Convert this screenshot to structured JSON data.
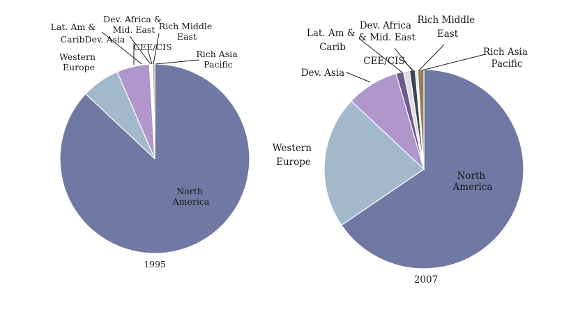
{
  "chart_data": [
    {
      "type": "pie",
      "caption": "1995",
      "start": "12 o'clock, clockwise",
      "slices": [
        {
          "label": "North America",
          "value": 87.0,
          "color": "#7079a3"
        },
        {
          "label": "Western Europe",
          "value": 6.5,
          "color": "#a2b8cb"
        },
        {
          "label": "Dev. Asia",
          "value": 5.6,
          "color": "#b096cb"
        },
        {
          "label": "Lat. Am & Carib",
          "value": 0.15,
          "color": "#6f5b8e"
        },
        {
          "label": "CEE/CIS",
          "value": 0.15,
          "color": "#b7bdc4"
        },
        {
          "label": "Dev. Africa & Mid. East",
          "value": 0.15,
          "color": "#3e4252"
        },
        {
          "label": "Rich Middle East",
          "value": 0.15,
          "color": "#e3e6ea"
        },
        {
          "label": "Rich Asia Pacific",
          "value": 0.3,
          "color": "#948054"
        }
      ]
    },
    {
      "type": "pie",
      "caption": "2007",
      "start": "12 o'clock, clockwise",
      "slices": [
        {
          "label": "North America",
          "value": 65.5,
          "color": "#7079a3"
        },
        {
          "label": "Western Europe",
          "value": 21.5,
          "color": "#a2b8cb"
        },
        {
          "label": "Dev. Asia",
          "value": 8.5,
          "color": "#b096cb"
        },
        {
          "label": "Lat. Am & Carib",
          "value": 1.2,
          "color": "#6f5b8e"
        },
        {
          "label": "CEE/CIS",
          "value": 1.0,
          "color": "#dadde2"
        },
        {
          "label": "Dev. Africa & Mid. East",
          "value": 0.9,
          "color": "#3e4252"
        },
        {
          "label": "Rich Middle East",
          "value": 0.4,
          "color": "#e3e6ea"
        },
        {
          "label": "Rich Asia Pacific",
          "value": 1.0,
          "color": "#948054"
        }
      ]
    }
  ],
  "labels": {
    "c1": {
      "north_america": [
        "North",
        "America"
      ],
      "western_europe": [
        "Western",
        "Europe"
      ],
      "dev_asia": "CaribDev. Asia",
      "lat_am": "Lat. Am &",
      "dev_africa": [
        "Dev. Africa &",
        "Mid. East"
      ],
      "cee_cis": "CEE/CIS",
      "rich_middle_east": [
        "Rich Middle",
        "East"
      ],
      "rich_asia_pacific": [
        "Rich Asia",
        "Pacific"
      ]
    },
    "c2": {
      "north_america": [
        "North",
        "America"
      ],
      "western_europe": [
        "Western",
        "Europe"
      ],
      "dev_asia": "Dev. Asia",
      "lat_am": [
        "Lat. Am &",
        "Carib"
      ],
      "dev_africa": [
        "Dev. Africa",
        "& Mid. East"
      ],
      "cee_cis": "CEE/CIS",
      "rich_middle_east": [
        "Rich Middle",
        "East"
      ],
      "rich_asia_pacific": [
        "Rich Asia",
        "Pacific"
      ]
    }
  }
}
